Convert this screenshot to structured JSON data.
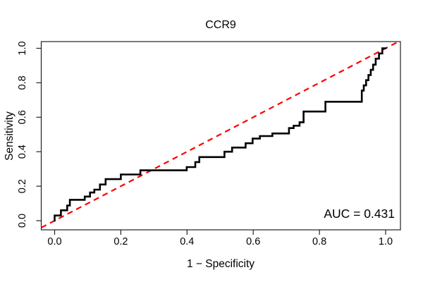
{
  "chart_data": {
    "type": "line",
    "subtype": "roc-step-curve",
    "title": "CCR9",
    "xlabel": "1 − Specificity",
    "ylabel": "Sensitivity",
    "xlim": [
      0,
      1
    ],
    "ylim": [
      0,
      1
    ],
    "grid": false,
    "legend": "none",
    "x_ticks": {
      "values": [
        0,
        0.2,
        0.4,
        0.6,
        0.8,
        1.0
      ],
      "labels": [
        "0.0",
        "0.2",
        "0.4",
        "0.6",
        "0.8",
        "1.0"
      ]
    },
    "y_ticks": {
      "values": [
        0,
        0.2,
        0.4,
        0.6,
        0.8,
        1.0
      ],
      "labels": [
        "0.0",
        "0.2",
        "0.4",
        "0.6",
        "0.8",
        "1.0"
      ]
    },
    "annotation": {
      "text": "AUC = 0.431",
      "value": 0.431,
      "position": "bottom-right"
    },
    "colors": {
      "roc_curve": "#000000",
      "chance_line": "#FF0000",
      "axis": "#222222"
    },
    "series": [
      {
        "name": "ROC curve",
        "color": "#000000",
        "style": "solid",
        "step": true,
        "points": [
          [
            0.0,
            0.0
          ],
          [
            0.0,
            0.03
          ],
          [
            0.019,
            0.03
          ],
          [
            0.019,
            0.06
          ],
          [
            0.038,
            0.06
          ],
          [
            0.038,
            0.088
          ],
          [
            0.046,
            0.088
          ],
          [
            0.046,
            0.121
          ],
          [
            0.091,
            0.121
          ],
          [
            0.091,
            0.14
          ],
          [
            0.107,
            0.14
          ],
          [
            0.107,
            0.163
          ],
          [
            0.12,
            0.163
          ],
          [
            0.12,
            0.18
          ],
          [
            0.137,
            0.18
          ],
          [
            0.137,
            0.21
          ],
          [
            0.154,
            0.21
          ],
          [
            0.154,
            0.241
          ],
          [
            0.2,
            0.241
          ],
          [
            0.2,
            0.268
          ],
          [
            0.259,
            0.268
          ],
          [
            0.259,
            0.292
          ],
          [
            0.399,
            0.292
          ],
          [
            0.399,
            0.311
          ],
          [
            0.425,
            0.311
          ],
          [
            0.425,
            0.34
          ],
          [
            0.437,
            0.34
          ],
          [
            0.437,
            0.369
          ],
          [
            0.513,
            0.369
          ],
          [
            0.513,
            0.4
          ],
          [
            0.536,
            0.4
          ],
          [
            0.536,
            0.424
          ],
          [
            0.577,
            0.424
          ],
          [
            0.577,
            0.449
          ],
          [
            0.598,
            0.449
          ],
          [
            0.598,
            0.476
          ],
          [
            0.62,
            0.476
          ],
          [
            0.62,
            0.491
          ],
          [
            0.658,
            0.491
          ],
          [
            0.658,
            0.506
          ],
          [
            0.708,
            0.506
          ],
          [
            0.708,
            0.537
          ],
          [
            0.722,
            0.537
          ],
          [
            0.722,
            0.551
          ],
          [
            0.74,
            0.551
          ],
          [
            0.74,
            0.571
          ],
          [
            0.752,
            0.571
          ],
          [
            0.752,
            0.633
          ],
          [
            0.818,
            0.633
          ],
          [
            0.818,
            0.69
          ],
          [
            0.928,
            0.69
          ],
          [
            0.928,
            0.755
          ],
          [
            0.934,
            0.755
          ],
          [
            0.934,
            0.785
          ],
          [
            0.941,
            0.785
          ],
          [
            0.941,
            0.815
          ],
          [
            0.948,
            0.815
          ],
          [
            0.948,
            0.845
          ],
          [
            0.955,
            0.845
          ],
          [
            0.955,
            0.875
          ],
          [
            0.962,
            0.875
          ],
          [
            0.962,
            0.905
          ],
          [
            0.97,
            0.905
          ],
          [
            0.97,
            0.94
          ],
          [
            0.98,
            0.94
          ],
          [
            0.98,
            0.97
          ],
          [
            0.99,
            0.97
          ],
          [
            0.99,
            1.0
          ],
          [
            1.0,
            1.0
          ]
        ]
      },
      {
        "name": "Chance diagonal",
        "color": "#FF0000",
        "style": "dashed",
        "points": [
          [
            0,
            0
          ],
          [
            1,
            1
          ]
        ]
      }
    ]
  }
}
